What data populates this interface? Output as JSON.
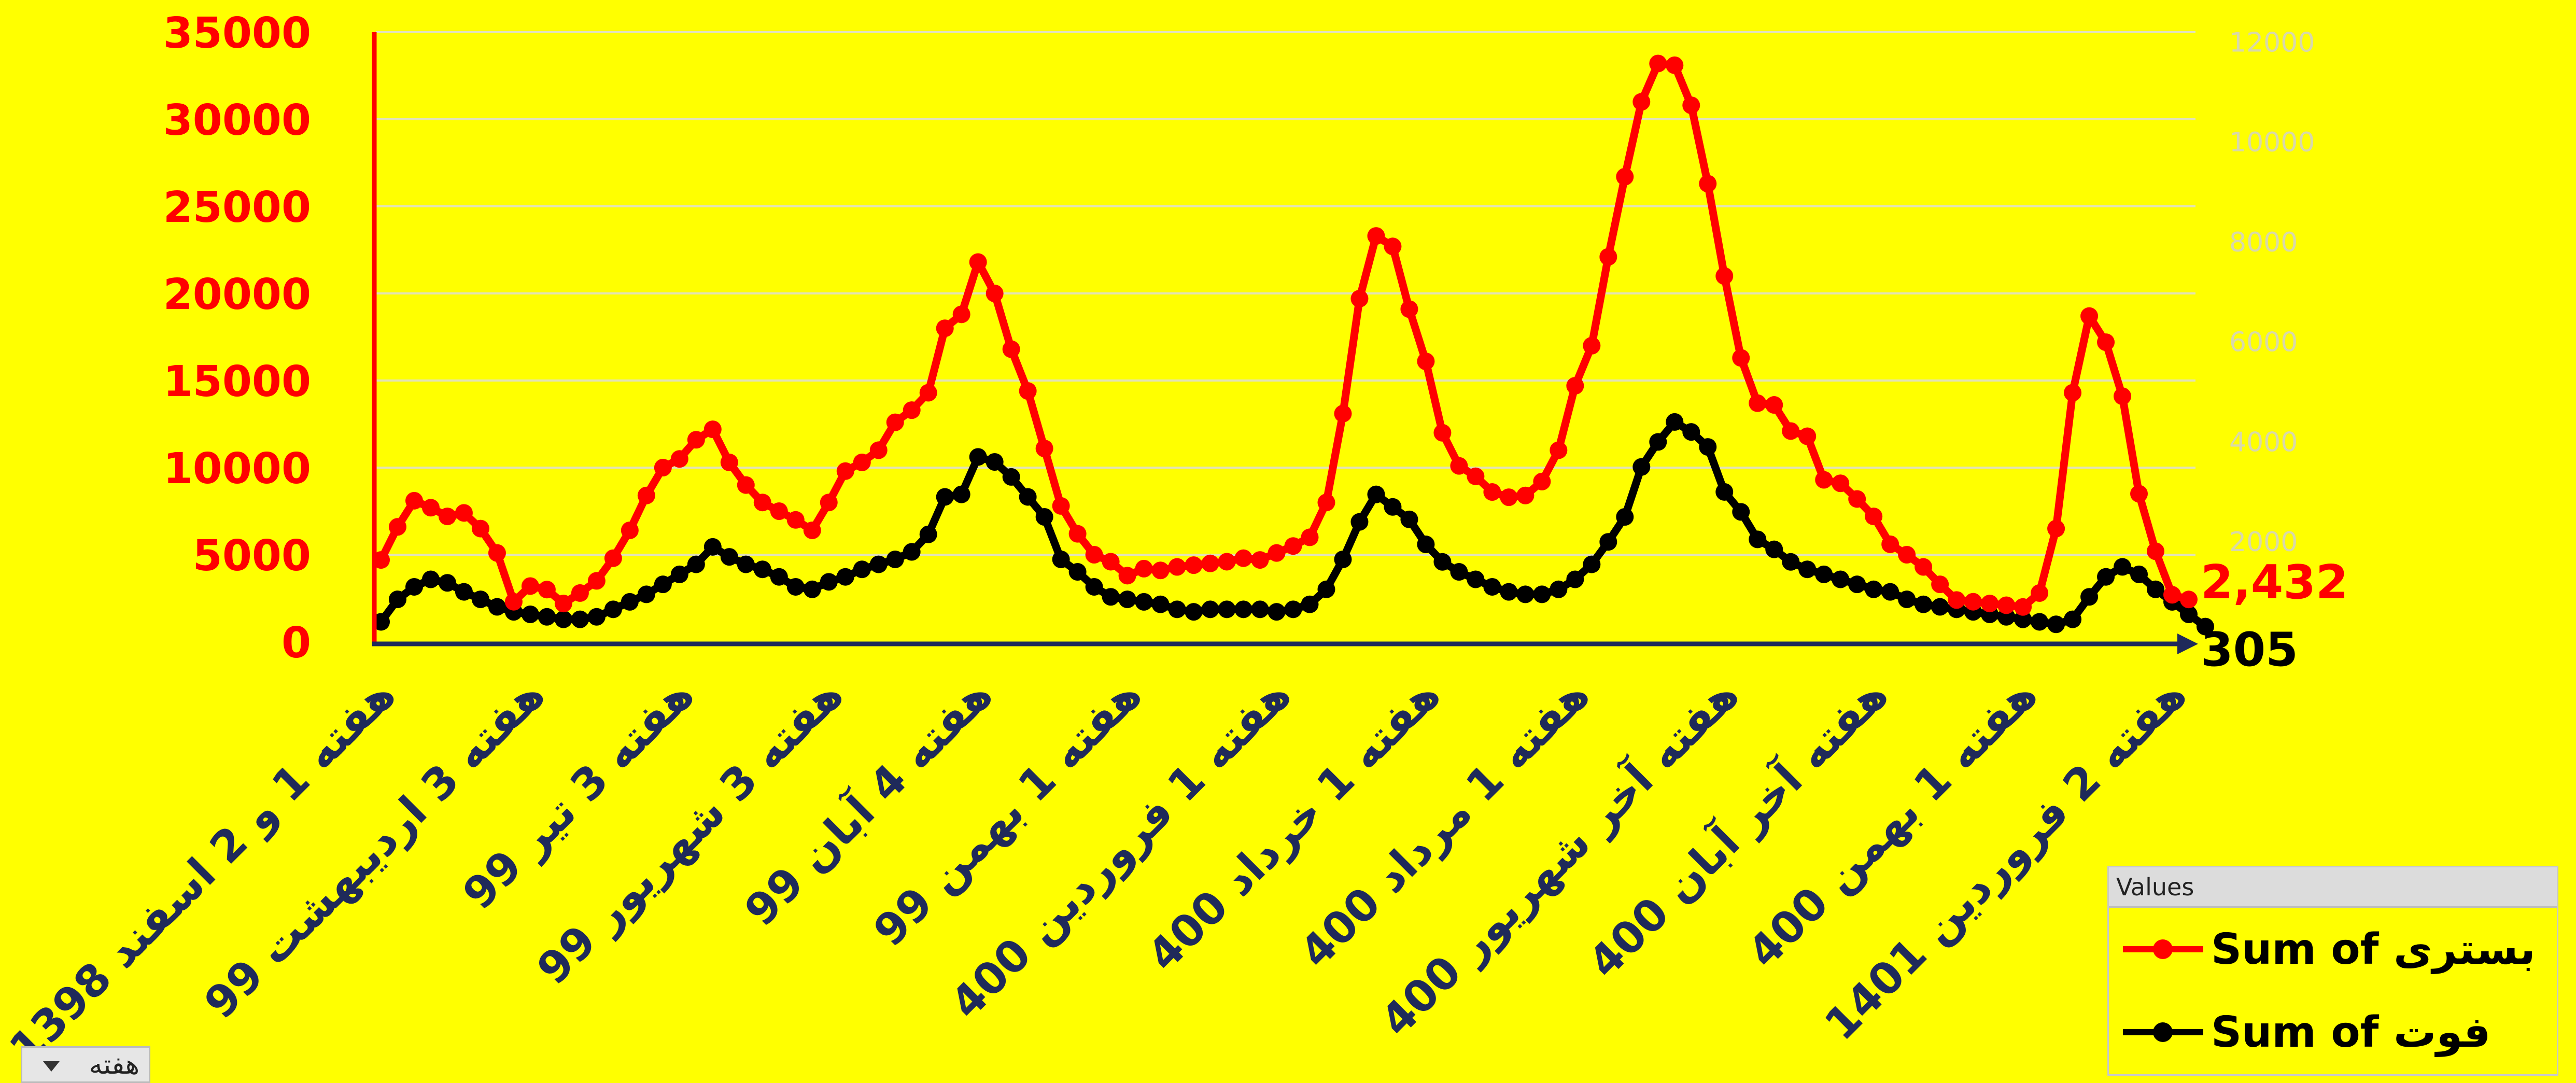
{
  "chart_data": {
    "type": "line",
    "title": "",
    "xlabel": "",
    "ylabel": "",
    "ylim": [
      0,
      35000
    ],
    "ylim_right": [
      0,
      12000
    ],
    "y_ticks": [
      "0",
      "5000",
      "10000",
      "15000",
      "20000",
      "25000",
      "30000",
      "35000"
    ],
    "y_ticks_right": [
      "2000",
      "4000",
      "6000",
      "8000",
      "10000",
      "12000"
    ],
    "x_tick_labels": [
      "هفته 1 و 2 اسفند 1398",
      "هفته 3 اردیبهشت 99",
      "هفته 3 تیر 99",
      "هفته 3 شهریور 99",
      "هفته 4 آبان 99",
      "هفته 1 بهمن 99",
      "هفته 1 فروردین 400",
      "هفته 1 خرداد 400",
      "هفته 1 مرداد 400",
      "هفته آخر شهریور 400",
      "هفته آخر آبان 400",
      "هفته 1 بهمن 400",
      "هفته 2 فروردین 1401"
    ],
    "x_tick_step": 9,
    "series": [
      {
        "name": "Sum of بستری",
        "axis": "left",
        "color": "#FF0000",
        "values": [
          4700,
          6600,
          8100,
          7700,
          7200,
          7400,
          6500,
          5100,
          2300,
          3200,
          3000,
          2200,
          2800,
          3500,
          4800,
          6400,
          8400,
          10000,
          10500,
          11600,
          12200,
          10300,
          9000,
          8000,
          7500,
          7000,
          6400,
          8000,
          9800,
          10300,
          11000,
          12600,
          13300,
          14300,
          18000,
          18800,
          21800,
          20000,
          16800,
          14400,
          11100,
          7800,
          6200,
          5000,
          4600,
          3800,
          4200,
          4100,
          4300,
          4400,
          4500,
          4600,
          4800,
          4700,
          5100,
          5500,
          6000,
          8000,
          13100,
          19700,
          23300,
          22700,
          19100,
          16100,
          12000,
          10100,
          9500,
          8600,
          8300,
          8400,
          9200,
          11000,
          14700,
          17000,
          22100,
          26700,
          31000,
          33200,
          33100,
          30800,
          26300,
          21000,
          16300,
          13700,
          13600,
          12100,
          11800,
          9300,
          9100,
          8200,
          7200,
          5600,
          5000,
          4300,
          3300,
          2400,
          2300,
          2200,
          2100,
          2000,
          2800,
          6500,
          14300,
          18700,
          17200,
          14100,
          8500,
          5200,
          2700,
          2432
        ]
      },
      {
        "name": "Sum of فوت",
        "axis": "right",
        "color": "#000000",
        "values": [
          400,
          850,
          1100,
          1250,
          1180,
          1000,
          850,
          700,
          600,
          550,
          500,
          450,
          450,
          500,
          650,
          800,
          950,
          1150,
          1350,
          1550,
          1900,
          1700,
          1550,
          1450,
          1300,
          1100,
          1050,
          1200,
          1300,
          1450,
          1550,
          1650,
          1800,
          2150,
          2900,
          2950,
          3700,
          3600,
          3300,
          2900,
          2500,
          1650,
          1400,
          1100,
          900,
          850,
          800,
          750,
          650,
          600,
          650,
          650,
          650,
          650,
          600,
          650,
          750,
          1050,
          1650,
          2400,
          2950,
          2700,
          2450,
          1950,
          1600,
          1400,
          1250,
          1100,
          1000,
          950,
          950,
          1050,
          1250,
          1550,
          2000,
          2500,
          3500,
          4000,
          4400,
          4200,
          3900,
          3000,
          2600,
          2050,
          1850,
          1600,
          1450,
          1350,
          1250,
          1150,
          1050,
          1000,
          850,
          750,
          700,
          650,
          600,
          550,
          500,
          450,
          400,
          350,
          450,
          900,
          1300,
          1500,
          1350,
          1050,
          800,
          550,
          305
        ]
      }
    ],
    "end_labels": [
      "2,432",
      "305"
    ],
    "legend": {
      "title": "Values",
      "position": "bottom-right"
    },
    "grid": true
  },
  "filter": {
    "label": "هفته"
  }
}
